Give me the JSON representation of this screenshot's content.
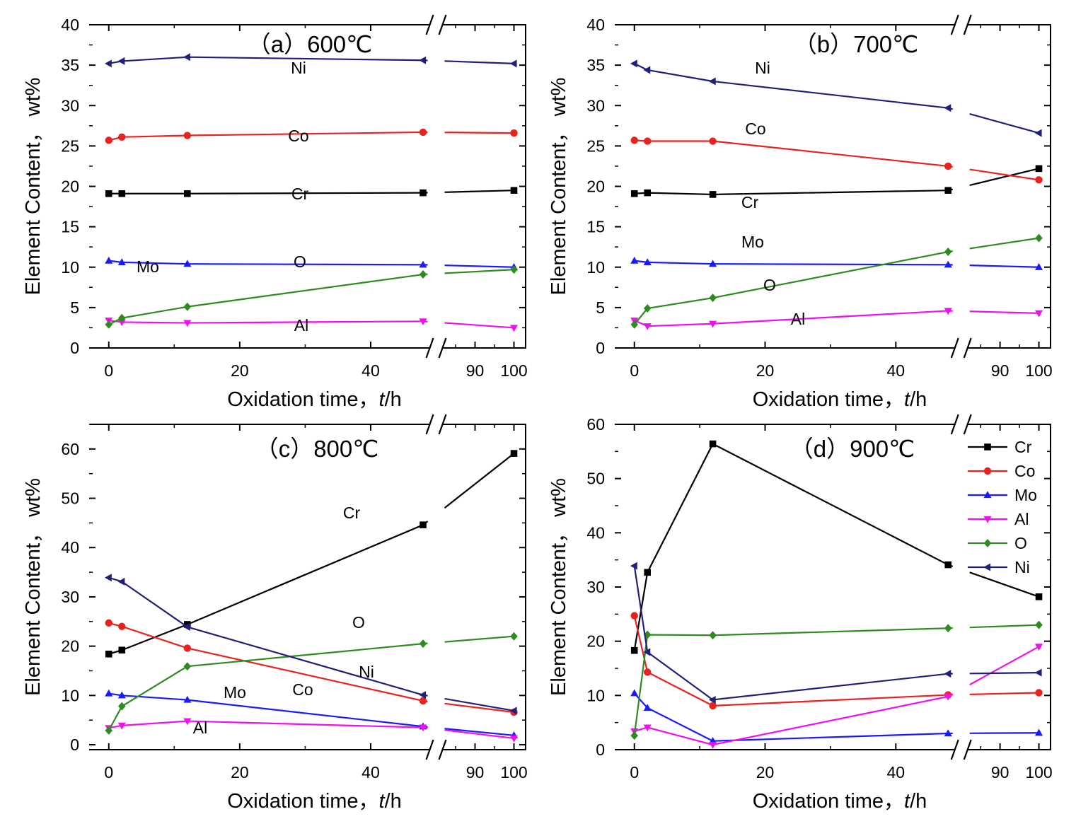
{
  "figure": {
    "xaxis_tick_labels": [
      "0",
      "20",
      "40",
      "90",
      "100"
    ]
  },
  "chart_data": [
    {
      "type": "line",
      "title": "（a）600℃",
      "xlabel_main": "Oxidation time，",
      "xlabel_var": "t",
      "xlabel_unit": "/h",
      "ylabel": "Element Content，  wt%",
      "x_axis_break": [
        50,
        80
      ],
      "xlim": [
        -3,
        103
      ],
      "ylim": [
        0,
        40
      ],
      "yticks": [
        0,
        5,
        10,
        15,
        20,
        25,
        30,
        35,
        40
      ],
      "x": [
        0,
        2,
        12,
        48,
        100
      ],
      "series": [
        {
          "name": "Cr",
          "color": "#000000",
          "marker": "square",
          "values": [
            19.1,
            19.1,
            19.1,
            19.2,
            19.5
          ]
        },
        {
          "name": "Co",
          "color": "#e8231f",
          "marker": "circle",
          "values": [
            25.7,
            26.1,
            26.3,
            26.7,
            26.6
          ]
        },
        {
          "name": "Mo",
          "color": "#1a1aff",
          "marker": "triangle-up",
          "values": [
            10.8,
            10.6,
            10.4,
            10.3,
            10.0
          ]
        },
        {
          "name": "Al",
          "color": "#ee11ee",
          "marker": "triangle-down",
          "values": [
            3.4,
            3.2,
            3.1,
            3.3,
            2.5
          ]
        },
        {
          "name": "O",
          "color": "#2e8b1f",
          "marker": "diamond",
          "values": [
            2.9,
            3.7,
            5.1,
            9.1,
            9.7
          ]
        },
        {
          "name": "Ni",
          "color": "#20207a",
          "marker": "triangle-left",
          "values": [
            35.2,
            35.5,
            36.0,
            35.6,
            35.2
          ]
        }
      ],
      "labels": [
        "Ni",
        "Co",
        "Cr",
        "Mo",
        "O",
        "Al"
      ]
    },
    {
      "type": "line",
      "title": "（b）700℃",
      "xlabel_main": "Oxidation time，",
      "xlabel_var": "t",
      "xlabel_unit": "/h",
      "ylabel": "Element Content，  wt%",
      "x_axis_break": [
        50,
        80
      ],
      "xlim": [
        -3,
        103
      ],
      "ylim": [
        0,
        40
      ],
      "yticks": [
        0,
        5,
        10,
        15,
        20,
        25,
        30,
        35,
        40
      ],
      "x": [
        0,
        2,
        12,
        48,
        100
      ],
      "series": [
        {
          "name": "Cr",
          "color": "#000000",
          "marker": "square",
          "values": [
            19.1,
            19.2,
            19.0,
            19.5,
            22.2
          ]
        },
        {
          "name": "Co",
          "color": "#e8231f",
          "marker": "circle",
          "values": [
            25.7,
            25.6,
            25.6,
            22.5,
            20.8
          ]
        },
        {
          "name": "Mo",
          "color": "#1a1aff",
          "marker": "triangle-up",
          "values": [
            10.8,
            10.6,
            10.4,
            10.3,
            10.0
          ]
        },
        {
          "name": "Al",
          "color": "#ee11ee",
          "marker": "triangle-down",
          "values": [
            3.4,
            2.7,
            3.0,
            4.6,
            4.3
          ]
        },
        {
          "name": "O",
          "color": "#2e8b1f",
          "marker": "diamond",
          "values": [
            2.9,
            4.9,
            6.2,
            11.9,
            13.6
          ]
        },
        {
          "name": "Ni",
          "color": "#20207a",
          "marker": "triangle-left",
          "values": [
            35.2,
            34.4,
            33.0,
            29.7,
            26.6
          ]
        }
      ],
      "labels": [
        "Ni",
        "Co",
        "Cr",
        "Mo",
        "O",
        "Al"
      ]
    },
    {
      "type": "line",
      "title": "（c）800℃",
      "xlabel_main": "Oxidation time，",
      "xlabel_var": "t",
      "xlabel_unit": "/h",
      "ylabel": "Element Content，  wt%",
      "x_axis_break": [
        50,
        80
      ],
      "xlim": [
        -3,
        103
      ],
      "ylim": [
        -1,
        65
      ],
      "yticks": [
        0,
        10,
        20,
        30,
        40,
        50,
        60
      ],
      "x": [
        0,
        2,
        12,
        48,
        100
      ],
      "series": [
        {
          "name": "Cr",
          "color": "#000000",
          "marker": "square",
          "values": [
            18.4,
            19.2,
            24.4,
            44.6,
            59.1
          ]
        },
        {
          "name": "Co",
          "color": "#e8231f",
          "marker": "circle",
          "values": [
            24.7,
            24.0,
            19.6,
            8.9,
            6.6
          ]
        },
        {
          "name": "Mo",
          "color": "#1a1aff",
          "marker": "triangle-up",
          "values": [
            10.4,
            10.0,
            9.1,
            3.7,
            1.9
          ]
        },
        {
          "name": "Al",
          "color": "#ee11ee",
          "marker": "triangle-down",
          "values": [
            3.4,
            3.9,
            4.8,
            3.5,
            1.3
          ]
        },
        {
          "name": "O",
          "color": "#2e8b1f",
          "marker": "diamond",
          "values": [
            2.9,
            7.8,
            15.9,
            20.5,
            22.0
          ]
        },
        {
          "name": "Ni",
          "color": "#20207a",
          "marker": "triangle-left",
          "values": [
            33.9,
            33.1,
            23.9,
            10.1,
            6.9
          ]
        }
      ],
      "labels": [
        "Cr",
        "O",
        "Ni",
        "Mo",
        "Co",
        "Al"
      ]
    },
    {
      "type": "line",
      "title": "（d）900℃",
      "xlabel_main": "Oxidation time，",
      "xlabel_var": "t",
      "xlabel_unit": "/h",
      "ylabel": "Element Content，  wt%",
      "x_axis_break": [
        50,
        80
      ],
      "xlim": [
        -3,
        103
      ],
      "ylim": [
        0,
        60
      ],
      "yticks": [
        0,
        10,
        20,
        30,
        40,
        50,
        60
      ],
      "x": [
        0,
        2,
        12,
        48,
        100
      ],
      "series": [
        {
          "name": "Cr",
          "color": "#000000",
          "marker": "square",
          "values": [
            18.3,
            32.7,
            56.4,
            34.1,
            28.2
          ]
        },
        {
          "name": "Co",
          "color": "#e8231f",
          "marker": "circle",
          "values": [
            24.7,
            14.3,
            8.1,
            10.1,
            10.5
          ]
        },
        {
          "name": "Mo",
          "color": "#1a1aff",
          "marker": "triangle-up",
          "values": [
            10.4,
            7.7,
            1.6,
            3.0,
            3.1
          ]
        },
        {
          "name": "Al",
          "color": "#ee11ee",
          "marker": "triangle-down",
          "values": [
            3.4,
            4.1,
            0.9,
            9.8,
            19.0
          ]
        },
        {
          "name": "O",
          "color": "#2e8b1f",
          "marker": "diamond",
          "values": [
            2.6,
            21.2,
            21.1,
            22.4,
            23.0
          ]
        },
        {
          "name": "Ni",
          "color": "#20207a",
          "marker": "triangle-left",
          "values": [
            33.9,
            18.0,
            9.2,
            14.0,
            14.2
          ]
        }
      ],
      "legend": {
        "position": "top-right",
        "entries": [
          "Cr",
          "Co",
          "Mo",
          "Al",
          "O",
          "Ni"
        ]
      }
    }
  ]
}
